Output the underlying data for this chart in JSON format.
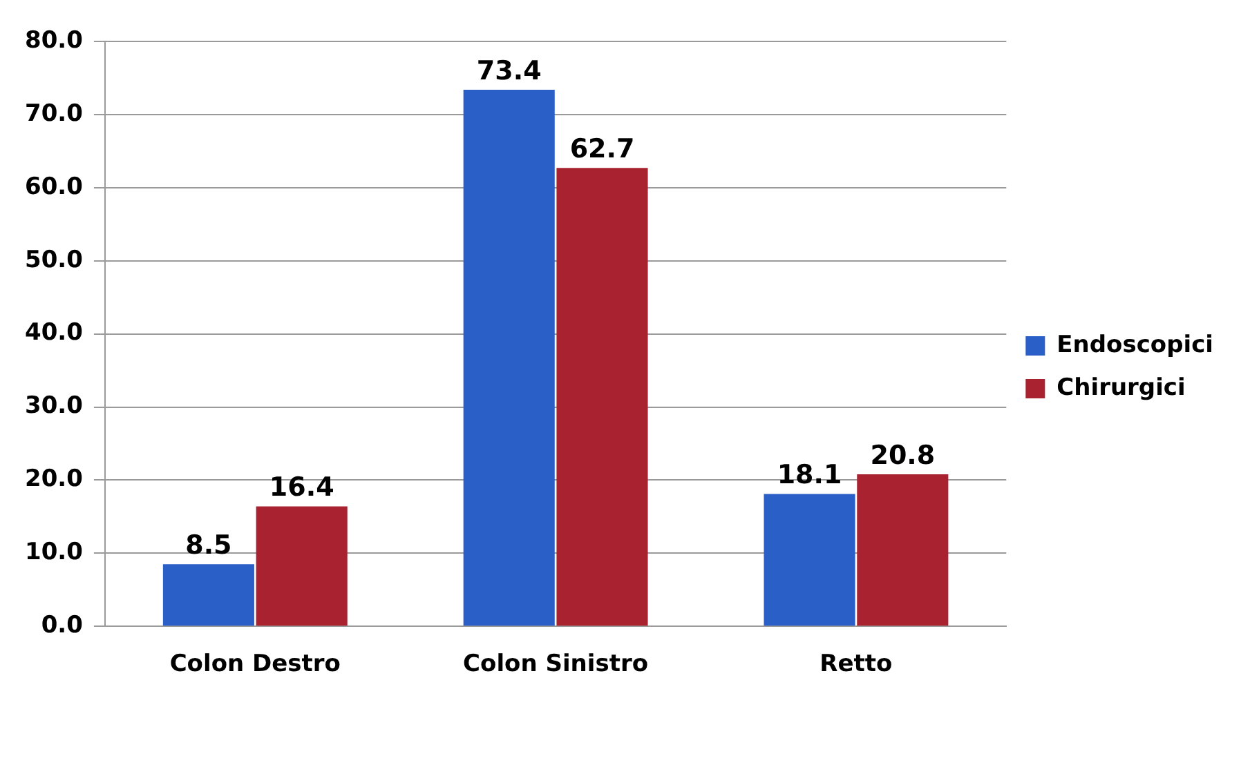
{
  "chart_data": {
    "type": "bar",
    "categories": [
      "Colon Destro",
      "Colon Sinistro",
      "Retto"
    ],
    "series": [
      {
        "name": "Endoscopici",
        "color": "#2b5fc8",
        "values": [
          8.5,
          73.4,
          18.1
        ]
      },
      {
        "name": "Chirurgici",
        "color": "#a8222f",
        "values": [
          16.4,
          62.7,
          20.8
        ]
      }
    ],
    "ylim": [
      0,
      80
    ],
    "yticks": [
      {
        "value": 0,
        "label": "0.0"
      },
      {
        "value": 10,
        "label": "10.0"
      },
      {
        "value": 20,
        "label": "20.0"
      },
      {
        "value": 30,
        "label": "30.0"
      },
      {
        "value": 40,
        "label": "40.0"
      },
      {
        "value": 50,
        "label": "50.0"
      },
      {
        "value": 60,
        "label": "60.0"
      },
      {
        "value": 70,
        "label": "70.0"
      },
      {
        "value": 80,
        "label": "80.0"
      }
    ],
    "grid": "y",
    "legend": "right",
    "data_labels": true
  }
}
